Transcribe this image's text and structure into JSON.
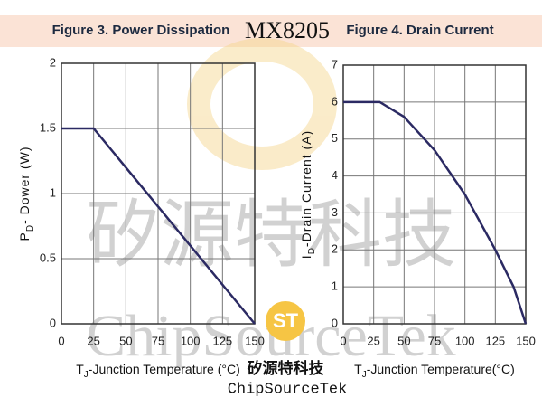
{
  "header": {
    "part": "MX8205"
  },
  "chart_data": [
    {
      "type": "line",
      "title": "Figure 3. Power Dissipation",
      "xlabel": [
        "T",
        "J",
        "-Junction Temperature (°C)"
      ],
      "ylabel": [
        "P",
        "D",
        "- Dower (W)"
      ],
      "x": [
        0,
        25,
        150
      ],
      "values": [
        1.5,
        1.5,
        0
      ],
      "color": "#2b2a63",
      "xlim": [
        0,
        150
      ],
      "xticks": [
        0,
        25,
        50,
        75,
        100,
        125,
        150
      ],
      "ylim": [
        0,
        2
      ],
      "yticks": [
        0,
        0.5,
        1,
        1.5,
        2
      ],
      "grid": true
    },
    {
      "type": "line",
      "title": "Figure 4. Drain Current",
      "xlabel": [
        "T",
        "J",
        "-Junction Temperature(°C)"
      ],
      "ylabel": [
        "I",
        "D",
        "-Drain Current (A)"
      ],
      "x": [
        0,
        30,
        50,
        75,
        100,
        125,
        140,
        150
      ],
      "values": [
        6,
        6,
        5.6,
        4.7,
        3.5,
        2.0,
        1.0,
        0
      ],
      "color": "#2b2a63",
      "xlim": [
        0,
        150
      ],
      "xticks": [
        0,
        25,
        50,
        75,
        100,
        125,
        150
      ],
      "ylim": [
        0,
        7
      ],
      "yticks": [
        0,
        1,
        2,
        3,
        4,
        5,
        6,
        7
      ],
      "grid": true
    }
  ],
  "watermark": {
    "chinese": "矽源特科技",
    "latin": "ChipSourceTek"
  },
  "logo": {
    "chinese": "矽源特科技",
    "latin": "ChipSourceTek"
  }
}
